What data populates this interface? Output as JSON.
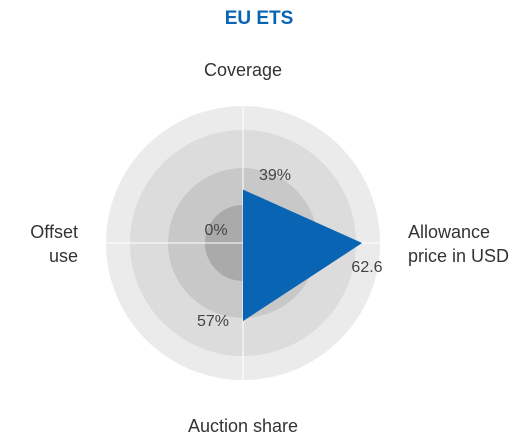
{
  "chart_data": {
    "type": "radar",
    "title": "EU ETS",
    "categories": [
      "Coverage",
      "Allowance price in USD",
      "Auction share",
      "Offset use"
    ],
    "values": [
      39,
      62.6,
      57,
      0
    ],
    "value_labels": [
      "39%",
      "62.6",
      "57%",
      "0%"
    ],
    "ylims": [
      [
        0,
        100
      ],
      [
        0,
        72
      ],
      [
        0,
        100
      ],
      [
        0,
        100
      ]
    ],
    "color": "#0a64b4"
  }
}
